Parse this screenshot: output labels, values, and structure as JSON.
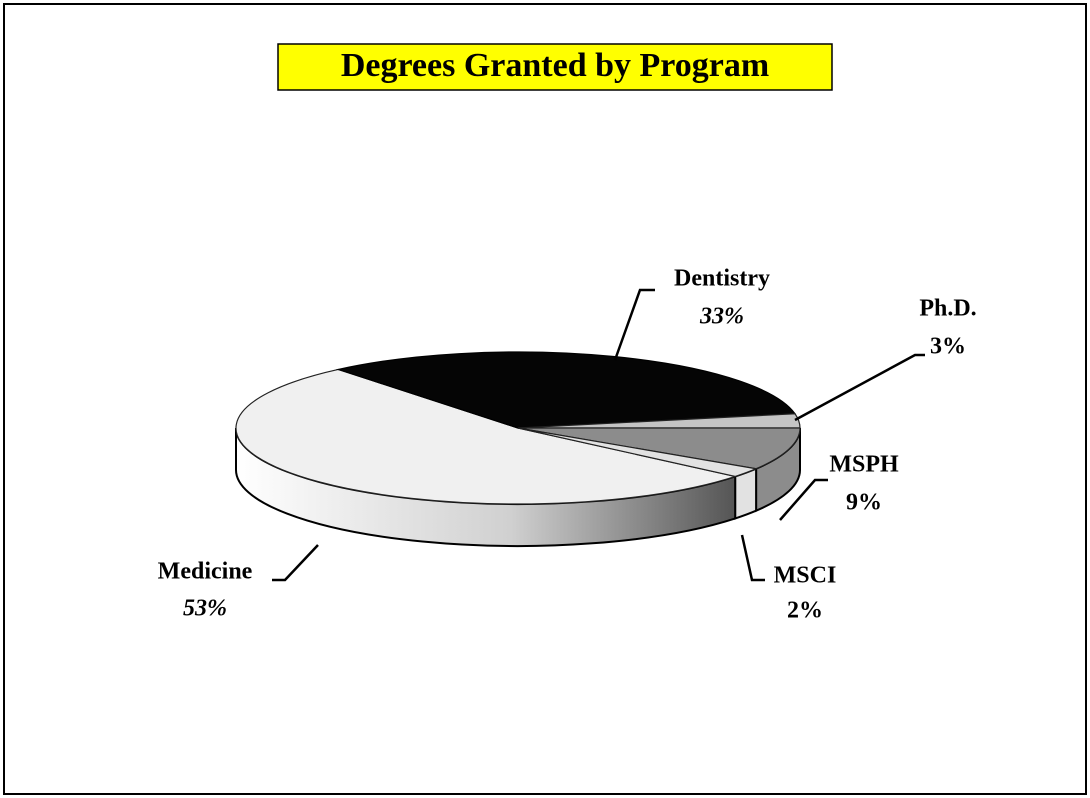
{
  "chart_data": {
    "type": "pie3d",
    "title": "Degrees Granted by Program",
    "categories": [
      "Medicine",
      "Dentistry",
      "Ph.D.",
      "MSPH",
      "MSCI"
    ],
    "values": [
      53,
      33,
      3,
      9,
      2
    ],
    "value_labels": [
      "53%",
      "33%",
      "3%",
      "9%",
      "2%"
    ],
    "colors": [
      "#f0f0f0",
      "#050505",
      "#c4c4c4",
      "#8c8c8c",
      "#e2e2e2"
    ]
  }
}
